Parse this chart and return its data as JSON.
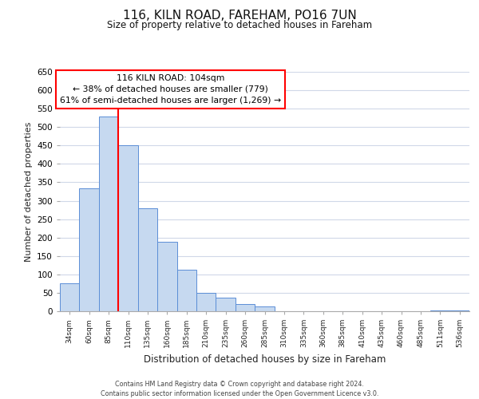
{
  "title1": "116, KILN ROAD, FAREHAM, PO16 7UN",
  "title2": "Size of property relative to detached houses in Fareham",
  "xlabel": "Distribution of detached houses by size in Fareham",
  "ylabel": "Number of detached properties",
  "bar_labels": [
    "34sqm",
    "60sqm",
    "85sqm",
    "110sqm",
    "135sqm",
    "160sqm",
    "185sqm",
    "210sqm",
    "235sqm",
    "260sqm",
    "285sqm",
    "310sqm",
    "335sqm",
    "360sqm",
    "385sqm",
    "410sqm",
    "435sqm",
    "460sqm",
    "485sqm",
    "511sqm",
    "536sqm"
  ],
  "bar_values": [
    75,
    333,
    528,
    450,
    280,
    188,
    113,
    50,
    37,
    20,
    14,
    0,
    0,
    0,
    0,
    0,
    0,
    0,
    0,
    2,
    2
  ],
  "bar_color": "#c6d9f0",
  "bar_edge_color": "#5b8ed6",
  "vline_color": "red",
  "annotation_line1": "116 KILN ROAD: 104sqm",
  "annotation_line2": "← 38% of detached houses are smaller (779)",
  "annotation_line3": "61% of semi-detached houses are larger (1,269) →",
  "annotation_box_color": "white",
  "annotation_box_edge": "red",
  "ylim": [
    0,
    650
  ],
  "yticks": [
    0,
    50,
    100,
    150,
    200,
    250,
    300,
    350,
    400,
    450,
    500,
    550,
    600,
    650
  ],
  "footer1": "Contains HM Land Registry data © Crown copyright and database right 2024.",
  "footer2": "Contains public sector information licensed under the Open Government Licence v3.0.",
  "bg_color": "#ffffff",
  "grid_color": "#d0d8e8"
}
